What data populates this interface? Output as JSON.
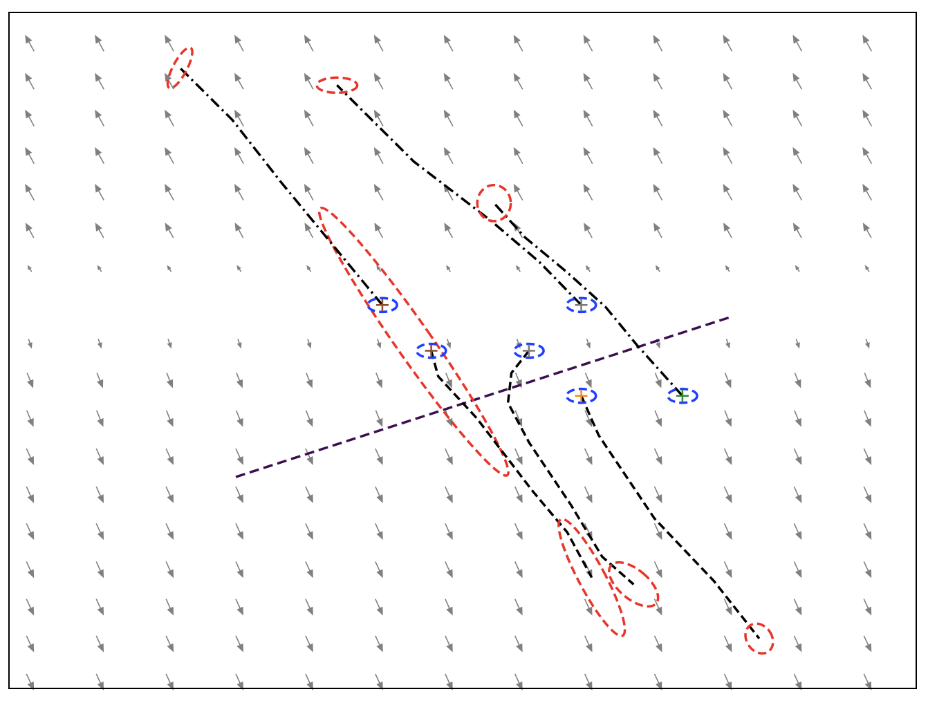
{
  "chart_data": {
    "type": "quiver-trajectory",
    "title": "",
    "xlabel": "",
    "ylabel": "",
    "xlim": [
      0,
      13
    ],
    "ylim": [
      0,
      9.75
    ],
    "grid": false,
    "legend": "none",
    "colors": {
      "axes": "#000000",
      "arrows": "#808080",
      "start_ellipse": "#1f3fff",
      "end_ellipse": "#e8352a",
      "trajectory": "#000000",
      "divider": "#3b0f4f",
      "marker_brown": "#8b4a2b",
      "marker_orange": "#f08a1c",
      "marker_green": "#2e8b2e",
      "marker_gray": "#7a7a7a"
    },
    "vector_field": {
      "x": [
        0.3,
        1.3,
        2.3,
        3.3,
        4.3,
        5.3,
        6.3,
        7.3,
        8.3,
        9.3,
        10.3,
        11.3,
        12.3
      ],
      "rows": [
        {
          "y": 9.3,
          "u": -0.12,
          "v": 0.22
        },
        {
          "y": 8.75,
          "u": -0.12,
          "v": 0.22
        },
        {
          "y": 8.22,
          "u": -0.12,
          "v": 0.22
        },
        {
          "y": 7.68,
          "u": -0.12,
          "v": 0.22
        },
        {
          "y": 7.15,
          "u": -0.12,
          "v": 0.22
        },
        {
          "y": 6.6,
          "u": -0.11,
          "v": 0.2
        },
        {
          "y": 6.05,
          "u": -0.05,
          "v": 0.08
        },
        {
          "y": 5.5,
          "u": 0.0,
          "v": 0.0
        },
        {
          "y": 4.98,
          "u": 0.04,
          "v": -0.12
        },
        {
          "y": 4.45,
          "u": 0.08,
          "v": -0.2
        },
        {
          "y": 3.9,
          "u": 0.09,
          "v": -0.22
        },
        {
          "y": 3.35,
          "u": 0.1,
          "v": -0.22
        },
        {
          "y": 2.8,
          "u": 0.1,
          "v": -0.22
        },
        {
          "y": 2.27,
          "u": 0.1,
          "v": -0.22
        },
        {
          "y": 1.72,
          "u": 0.1,
          "v": -0.22
        },
        {
          "y": 1.18,
          "u": 0.1,
          "v": -0.22
        },
        {
          "y": 0.65,
          "u": 0.1,
          "v": -0.22
        },
        {
          "y": 0.1,
          "u": 0.1,
          "v": -0.22
        }
      ]
    },
    "divider": {
      "x": [
        3.25,
        10.35
      ],
      "y": [
        3.05,
        5.36
      ]
    },
    "trajectories": [
      {
        "style": "dashdot",
        "marker": "marker_brown",
        "points": [
          [
            5.35,
            5.53
          ],
          [
            4.8,
            6.2
          ],
          [
            3.9,
            7.3
          ],
          [
            3.2,
            8.2
          ],
          [
            2.45,
            8.95
          ]
        ],
        "start_ellipse": {
          "w": 0.42,
          "h": 0.2,
          "angle": 0
        },
        "end_ellipse": {
          "w": 0.65,
          "h": 0.2,
          "angle": 62
        }
      },
      {
        "style": "dashdot",
        "marker": "marker_gray",
        "points": [
          [
            8.2,
            5.53
          ],
          [
            7.6,
            6.15
          ],
          [
            6.9,
            6.75
          ],
          [
            5.8,
            7.6
          ],
          [
            4.7,
            8.7
          ]
        ],
        "start_ellipse": {
          "w": 0.42,
          "h": 0.2,
          "angle": 0
        },
        "end_ellipse": {
          "w": 0.58,
          "h": 0.22,
          "angle": 0
        }
      },
      {
        "style": "dashdot",
        "marker": "marker_green",
        "points": [
          [
            9.65,
            4.22
          ],
          [
            9.0,
            4.95
          ],
          [
            8.55,
            5.5
          ],
          [
            8.0,
            6.0
          ],
          [
            7.4,
            6.5
          ],
          [
            6.95,
            7.0
          ]
        ],
        "start_ellipse": {
          "w": 0.42,
          "h": 0.2,
          "angle": 0
        },
        "end_ellipse": {
          "w": 0.48,
          "h": 0.52,
          "angle": 0
        }
      },
      {
        "style": "dashed",
        "marker": "marker_brown",
        "points": [
          [
            6.05,
            4.87
          ],
          [
            6.15,
            4.5
          ],
          [
            6.7,
            3.9
          ],
          [
            7.5,
            2.85
          ],
          [
            8.0,
            2.25
          ],
          [
            8.35,
            1.6
          ]
        ],
        "start_ellipse": {
          "w": 0.42,
          "h": 0.2,
          "angle": 0
        },
        "end_ellipse": {
          "w": 0.38,
          "h": 1.9,
          "angle": 28
        }
      },
      {
        "style": "dashed",
        "marker": "marker_gray",
        "points": [
          [
            7.45,
            4.87
          ],
          [
            7.2,
            4.55
          ],
          [
            7.15,
            4.12
          ],
          [
            7.45,
            3.55
          ],
          [
            8.05,
            2.65
          ],
          [
            8.5,
            1.9
          ],
          [
            8.95,
            1.5
          ]
        ],
        "start_ellipse": {
          "w": 0.42,
          "h": 0.2,
          "angle": 0
        },
        "end_ellipse": {
          "w": 0.42,
          "h": 0.85,
          "angle": 50
        }
      },
      {
        "style": "dashed",
        "marker": "marker_orange",
        "points": [
          [
            8.2,
            4.22
          ],
          [
            8.45,
            3.65
          ],
          [
            9.25,
            2.45
          ],
          [
            10.1,
            1.55
          ],
          [
            10.75,
            0.72
          ]
        ],
        "start_ellipse": {
          "w": 0.42,
          "h": 0.2,
          "angle": 0
        },
        "end_ellipse": {
          "w": 0.36,
          "h": 0.46,
          "angle": 35
        }
      }
    ],
    "extra_ellipse": {
      "center": [
        5.8,
        5.0
      ],
      "width": 0.5,
      "length": 4.7,
      "angle": 35
    }
  }
}
